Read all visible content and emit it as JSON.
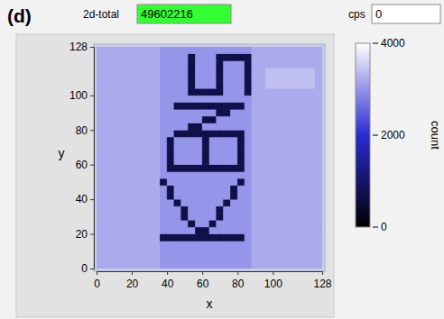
{
  "header": {
    "panel_label": "(d)",
    "fields": [
      {
        "label": "2d-total",
        "value": 49602216
      },
      {
        "label": "cps",
        "value": 0
      }
    ]
  },
  "chart_data": {
    "type": "heatmap",
    "x_label": "x",
    "y_label": "y",
    "xlim": [
      0,
      128
    ],
    "ylim": [
      0,
      128
    ],
    "xticks": [
      0,
      20,
      40,
      60,
      80,
      100,
      128
    ],
    "yticks": [
      0,
      20,
      40,
      60,
      80,
      100,
      128
    ],
    "x_bins": [
      0,
      4,
      8,
      12,
      16,
      20,
      24,
      28,
      32,
      36,
      40,
      44,
      48,
      52,
      56,
      60,
      64,
      68,
      72,
      76,
      80,
      84,
      88,
      92,
      96,
      100,
      104,
      108,
      112,
      116,
      120,
      124,
      128
    ],
    "y_bins": [
      0,
      4,
      8,
      12,
      16,
      20,
      24,
      28,
      32,
      36,
      40,
      44,
      48,
      52,
      56,
      60,
      64,
      68,
      72,
      76,
      80,
      84,
      88,
      92,
      96,
      100,
      104,
      108,
      112,
      116,
      120,
      124,
      128
    ],
    "z": [
      [
        3200,
        3200,
        3200,
        3200,
        3200,
        3200,
        3200,
        3200,
        3200,
        3000,
        3000,
        3000,
        3000,
        3000,
        3000,
        3000,
        3000,
        3000,
        3000,
        3000,
        3000,
        3000,
        3200,
        3200,
        3200,
        3200,
        3200,
        3200,
        3200,
        3200,
        3200,
        3200
      ],
      [
        3200,
        3200,
        3200,
        3200,
        3200,
        3200,
        3200,
        3200,
        3200,
        3000,
        3000,
        3000,
        3000,
        3000,
        3000,
        3000,
        3000,
        3000,
        3000,
        3000,
        3000,
        3000,
        3200,
        3200,
        3200,
        3200,
        3200,
        3200,
        3200,
        3200,
        3200,
        3200
      ],
      [
        3200,
        3200,
        3200,
        3200,
        3200,
        3200,
        3200,
        3200,
        3200,
        3000,
        3000,
        3000,
        3000,
        3000,
        3000,
        3000,
        3000,
        3000,
        3000,
        3000,
        3000,
        3000,
        3200,
        3200,
        3200,
        3200,
        3200,
        3200,
        3200,
        3200,
        3200,
        3200
      ],
      [
        3200,
        3200,
        3200,
        3200,
        3200,
        3200,
        3200,
        3200,
        3200,
        3000,
        3000,
        3000,
        3000,
        3000,
        3000,
        3000,
        3000,
        3000,
        3000,
        3000,
        3000,
        3000,
        3200,
        3200,
        3200,
        3200,
        3200,
        3200,
        3200,
        3200,
        3200,
        3200
      ],
      [
        3200,
        3200,
        3200,
        3200,
        3200,
        3200,
        3200,
        3200,
        3200,
        700,
        700,
        700,
        700,
        700,
        700,
        700,
        700,
        700,
        700,
        700,
        700,
        3000,
        3200,
        3200,
        3200,
        3200,
        3200,
        3200,
        3200,
        3200,
        3200,
        3200
      ],
      [
        3200,
        3200,
        3200,
        3200,
        3200,
        3200,
        3200,
        3200,
        3200,
        3000,
        3000,
        3000,
        3000,
        3000,
        700,
        700,
        3000,
        3000,
        3000,
        3000,
        3000,
        3000,
        3200,
        3200,
        3200,
        3200,
        3200,
        3200,
        3200,
        3200,
        3200,
        3200
      ],
      [
        3200,
        3200,
        3200,
        3200,
        3200,
        3200,
        3200,
        3200,
        3200,
        3000,
        3000,
        3000,
        3000,
        700,
        3000,
        3000,
        700,
        3000,
        3000,
        3000,
        3000,
        3000,
        3200,
        3200,
        3200,
        3200,
        3200,
        3200,
        3200,
        3200,
        3200,
        3200
      ],
      [
        3200,
        3200,
        3200,
        3200,
        3200,
        3200,
        3200,
        3200,
        3200,
        3000,
        3000,
        3000,
        700,
        3000,
        3000,
        3000,
        3000,
        700,
        3000,
        3000,
        3000,
        3000,
        3200,
        3200,
        3200,
        3200,
        3200,
        3200,
        3200,
        3200,
        3200,
        3200
      ],
      [
        3200,
        3200,
        3200,
        3200,
        3200,
        3200,
        3200,
        3200,
        3200,
        3000,
        3000,
        3000,
        700,
        3000,
        3000,
        3000,
        3000,
        700,
        3000,
        3000,
        3000,
        3000,
        3200,
        3200,
        3200,
        3200,
        3200,
        3200,
        3200,
        3200,
        3200,
        3200
      ],
      [
        3200,
        3200,
        3200,
        3200,
        3200,
        3200,
        3200,
        3200,
        3200,
        3000,
        3000,
        700,
        3000,
        3000,
        3000,
        3000,
        3000,
        3000,
        700,
        3000,
        3000,
        3000,
        3200,
        3200,
        3200,
        3200,
        3200,
        3200,
        3200,
        3200,
        3200,
        3200
      ],
      [
        3200,
        3200,
        3200,
        3200,
        3200,
        3200,
        3200,
        3200,
        3200,
        3000,
        700,
        3000,
        3000,
        3000,
        3000,
        3000,
        3000,
        3000,
        3000,
        700,
        3000,
        3000,
        3200,
        3200,
        3200,
        3200,
        3200,
        3200,
        3200,
        3200,
        3200,
        3200
      ],
      [
        3200,
        3200,
        3200,
        3200,
        3200,
        3200,
        3200,
        3200,
        3200,
        3000,
        700,
        3000,
        3000,
        3000,
        3000,
        3000,
        3000,
        3000,
        3000,
        700,
        3000,
        3000,
        3200,
        3200,
        3200,
        3200,
        3200,
        3200,
        3200,
        3200,
        3200,
        3200
      ],
      [
        3200,
        3200,
        3200,
        3200,
        3200,
        3200,
        3200,
        3200,
        3200,
        700,
        3000,
        3000,
        3000,
        3000,
        3000,
        3000,
        3000,
        3000,
        3000,
        3000,
        700,
        3000,
        3200,
        3200,
        3200,
        3200,
        3200,
        3200,
        3200,
        3200,
        3200,
        3200
      ],
      [
        3200,
        3200,
        3200,
        3200,
        3200,
        3200,
        3200,
        3200,
        3200,
        3000,
        3000,
        3000,
        3000,
        3000,
        3000,
        3000,
        3000,
        3000,
        3000,
        3000,
        3000,
        3000,
        3200,
        3200,
        3200,
        3200,
        3200,
        3200,
        3200,
        3200,
        3200,
        3200
      ],
      [
        3200,
        3200,
        3200,
        3200,
        3200,
        3200,
        3200,
        3200,
        3200,
        3000,
        700,
        700,
        700,
        700,
        700,
        700,
        700,
        700,
        700,
        700,
        700,
        3000,
        3200,
        3200,
        3200,
        3200,
        3200,
        3200,
        3200,
        3200,
        3200,
        3200
      ],
      [
        3200,
        3200,
        3200,
        3200,
        3200,
        3200,
        3200,
        3200,
        3200,
        3000,
        700,
        3000,
        3000,
        3000,
        3000,
        700,
        3000,
        3000,
        3000,
        3000,
        700,
        3000,
        3200,
        3200,
        3200,
        3200,
        3200,
        3200,
        3200,
        3200,
        3200,
        3200
      ],
      [
        3200,
        3200,
        3200,
        3200,
        3200,
        3200,
        3200,
        3200,
        3200,
        3000,
        700,
        3000,
        3000,
        3000,
        3000,
        700,
        3000,
        3000,
        3000,
        3000,
        700,
        3000,
        3200,
        3200,
        3200,
        3200,
        3200,
        3200,
        3200,
        3200,
        3200,
        3200
      ],
      [
        3200,
        3200,
        3200,
        3200,
        3200,
        3200,
        3200,
        3200,
        3200,
        3000,
        700,
        3000,
        3000,
        3000,
        3000,
        700,
        3000,
        3000,
        3000,
        3000,
        700,
        3000,
        3200,
        3200,
        3200,
        3200,
        3200,
        3200,
        3200,
        3200,
        3200,
        3200
      ],
      [
        3200,
        3200,
        3200,
        3200,
        3200,
        3200,
        3200,
        3200,
        3200,
        3000,
        700,
        3000,
        3000,
        3000,
        3000,
        700,
        3000,
        3000,
        3000,
        3000,
        700,
        3000,
        3200,
        3200,
        3200,
        3200,
        3200,
        3200,
        3200,
        3200,
        3200,
        3200
      ],
      [
        3200,
        3200,
        3200,
        3200,
        3200,
        3200,
        3200,
        3200,
        3200,
        3000,
        3000,
        700,
        700,
        700,
        700,
        700,
        700,
        700,
        700,
        700,
        700,
        3000,
        3200,
        3200,
        3200,
        3200,
        3200,
        3200,
        3200,
        3200,
        3200,
        3200
      ],
      [
        3200,
        3200,
        3200,
        3200,
        3200,
        3200,
        3200,
        3200,
        3200,
        3000,
        3000,
        3000,
        3000,
        700,
        700,
        3000,
        3000,
        3000,
        3000,
        3000,
        3000,
        3000,
        3200,
        3200,
        3200,
        3200,
        3200,
        3200,
        3200,
        3200,
        3200,
        3200
      ],
      [
        3200,
        3200,
        3200,
        3200,
        3200,
        3200,
        3200,
        3200,
        3200,
        3000,
        3000,
        3000,
        3000,
        3000,
        3000,
        700,
        700,
        3000,
        3000,
        3000,
        3000,
        3000,
        3200,
        3200,
        3200,
        3200,
        3200,
        3200,
        3200,
        3200,
        3200,
        3200
      ],
      [
        3200,
        3200,
        3200,
        3200,
        3200,
        3200,
        3200,
        3200,
        3200,
        3000,
        3000,
        3000,
        3000,
        3000,
        3000,
        3000,
        3000,
        700,
        700,
        3000,
        3000,
        3000,
        3200,
        3200,
        3200,
        3200,
        3200,
        3200,
        3200,
        3200,
        3200,
        3200
      ],
      [
        3200,
        3200,
        3200,
        3200,
        3200,
        3200,
        3200,
        3200,
        3200,
        3000,
        3000,
        700,
        700,
        700,
        700,
        700,
        700,
        700,
        700,
        700,
        700,
        3000,
        3200,
        3200,
        3200,
        3200,
        3200,
        3200,
        3200,
        3200,
        3200,
        3200
      ],
      [
        3200,
        3200,
        3200,
        3200,
        3200,
        3200,
        3200,
        3200,
        3200,
        3000,
        3000,
        3000,
        3000,
        3000,
        3000,
        3000,
        3000,
        3000,
        3000,
        3000,
        3000,
        3000,
        3200,
        3200,
        3200,
        3200,
        3200,
        3200,
        3200,
        3200,
        3200,
        3200
      ],
      [
        3200,
        3200,
        3200,
        3200,
        3200,
        3200,
        3200,
        3200,
        3200,
        3000,
        3000,
        3000,
        3000,
        700,
        700,
        700,
        700,
        700,
        3000,
        3000,
        3000,
        700,
        3200,
        3200,
        3200,
        3200,
        3200,
        3200,
        3200,
        3200,
        3200,
        3200
      ],
      [
        3200,
        3200,
        3200,
        3200,
        3200,
        3200,
        3200,
        3200,
        3200,
        3000,
        3000,
        3000,
        3000,
        700,
        3000,
        3000,
        3000,
        700,
        3000,
        3000,
        3000,
        700,
        3200,
        3200,
        3400,
        3400,
        3400,
        3400,
        3400,
        3400,
        3400,
        3200
      ],
      [
        3200,
        3200,
        3200,
        3200,
        3200,
        3200,
        3200,
        3200,
        3200,
        3000,
        3000,
        3000,
        3000,
        700,
        3000,
        3000,
        3000,
        700,
        3000,
        3000,
        3000,
        700,
        3200,
        3200,
        3400,
        3400,
        3400,
        3400,
        3400,
        3400,
        3400,
        3200
      ],
      [
        3200,
        3200,
        3200,
        3200,
        3200,
        3200,
        3200,
        3200,
        3200,
        3000,
        3000,
        3000,
        3000,
        700,
        3000,
        3000,
        3000,
        700,
        3000,
        3000,
        3000,
        700,
        3200,
        3200,
        3400,
        3400,
        3400,
        3400,
        3400,
        3400,
        3400,
        3200
      ],
      [
        3200,
        3200,
        3200,
        3200,
        3200,
        3200,
        3200,
        3200,
        3200,
        3000,
        3000,
        3000,
        3000,
        700,
        3000,
        3000,
        3000,
        700,
        3000,
        3000,
        3000,
        700,
        3200,
        3200,
        3200,
        3200,
        3200,
        3200,
        3200,
        3200,
        3200,
        3200
      ],
      [
        3200,
        3200,
        3200,
        3200,
        3200,
        3200,
        3200,
        3200,
        3200,
        3000,
        3000,
        3000,
        3000,
        700,
        3000,
        3000,
        3000,
        700,
        700,
        700,
        700,
        700,
        3200,
        3200,
        3200,
        3200,
        3200,
        3200,
        3200,
        3200,
        3200,
        3200
      ],
      [
        3200,
        3200,
        3200,
        3200,
        3200,
        3200,
        3200,
        3200,
        3200,
        3000,
        3000,
        3000,
        3000,
        3000,
        3000,
        3000,
        3000,
        3000,
        3000,
        3000,
        3000,
        3000,
        3200,
        3200,
        3200,
        3200,
        3200,
        3200,
        3200,
        3200,
        3200,
        3200
      ]
    ],
    "colorbar": {
      "title": "count",
      "range": [
        0,
        4000
      ],
      "ticks": [
        0,
        2000,
        4000
      ]
    }
  }
}
